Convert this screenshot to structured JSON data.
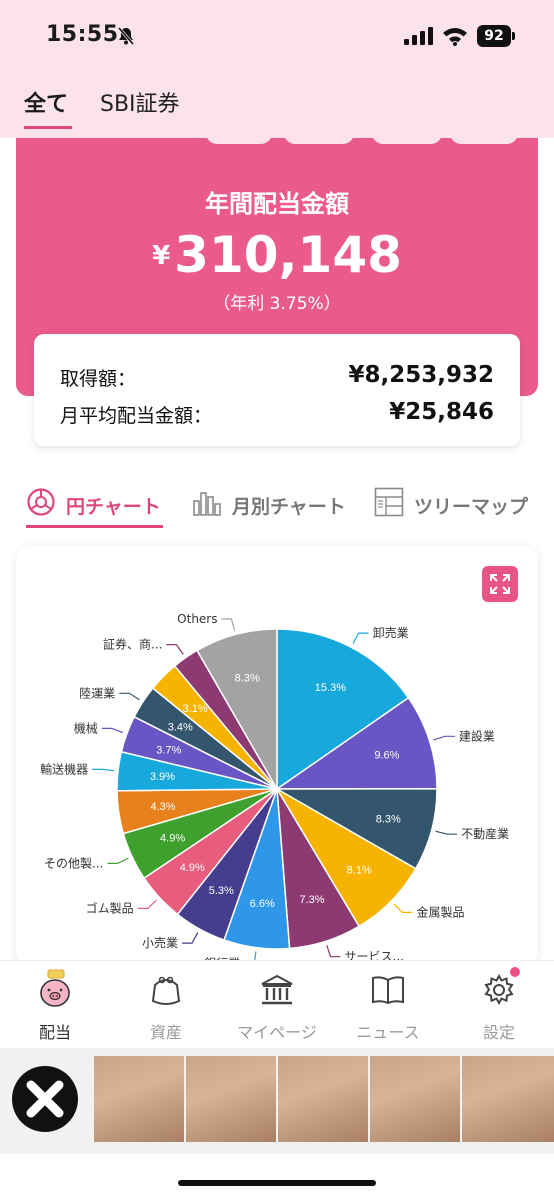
{
  "status_bar": {
    "time": "15:55",
    "battery": "92"
  },
  "header": {
    "tab_all": "全て",
    "tab_sbi": "SBI証券"
  },
  "summary": {
    "title": "年間配当金額",
    "currency": "¥",
    "amount": "310,148",
    "yield_text": "（年利 3.75%）"
  },
  "info": {
    "acq_label": "取得額：",
    "acq_value": "¥8,253,932",
    "monthly_label": "月平均配当金額：",
    "monthly_value": "¥25,846"
  },
  "chart_tabs": [
    {
      "label": "円チャート",
      "icon": "pie-chart-icon",
      "active": true
    },
    {
      "label": "月別チャート",
      "icon": "bar-chart-icon",
      "active": false
    },
    {
      "label": "ツリーマップ",
      "icon": "treemap-icon",
      "active": false
    }
  ],
  "chart_data": {
    "type": "pie",
    "start": "top, clockwise",
    "slices": [
      {
        "label": "卸売業",
        "value": 15.3,
        "text": "15.3%",
        "color": "#18a9dc"
      },
      {
        "label": "建設業",
        "value": 9.6,
        "text": "9.6%",
        "color": "#6a55c4"
      },
      {
        "label": "不動産業",
        "value": 8.3,
        "text": "8.3%",
        "color": "#33566e"
      },
      {
        "label": "金属製品",
        "value": 8.1,
        "text": "8.1%",
        "color": "#f6b400"
      },
      {
        "label": "サービス...",
        "value": 7.3,
        "text": "7.3%",
        "color": "#8d3a73"
      },
      {
        "label": "銀行業",
        "value": 6.6,
        "text": "6.6%",
        "color": "#2f97e9"
      },
      {
        "label": "小売業",
        "value": 5.3,
        "text": "5.3%",
        "color": "#463d8e"
      },
      {
        "label": "ゴム製品",
        "value": 4.9,
        "text": "4.9%",
        "color": "#e85d7e"
      },
      {
        "label": "その他製...",
        "value": 4.9,
        "text": "4.9%",
        "color": "#3ea12e"
      },
      {
        "label": "",
        "value": 4.3,
        "text": "4.3%",
        "color": "#e8801c"
      },
      {
        "label": "輸送機器",
        "value": 3.9,
        "text": "3.9%",
        "color": "#18a9dc"
      },
      {
        "label": "機械",
        "value": 3.7,
        "text": "3.7%",
        "color": "#6a55c4"
      },
      {
        "label": "陸運業",
        "value": 3.4,
        "text": "3.4%",
        "color": "#33566e"
      },
      {
        "label": "",
        "value": 3.1,
        "text": "3.1%",
        "color": "#f6b400"
      },
      {
        "label": "証券、商...",
        "value": 2.7,
        "text": "",
        "color": "#8d3a73"
      },
      {
        "label": "Others",
        "value": 8.3,
        "text": "8.3%",
        "color": "#a3a3a3"
      }
    ]
  },
  "tabbar": [
    {
      "label": "配当",
      "icon": "pig-icon",
      "active": true
    },
    {
      "label": "資産",
      "icon": "wallet-icon",
      "active": false
    },
    {
      "label": "マイページ",
      "icon": "bank-icon",
      "active": false
    },
    {
      "label": "ニュース",
      "icon": "book-icon",
      "active": false
    },
    {
      "label": "設定",
      "icon": "gear-icon",
      "active": false
    }
  ],
  "colors": {
    "accent": "#e0467c",
    "hero": "#ea5b8c",
    "header_bg": "#fbe3e9"
  }
}
